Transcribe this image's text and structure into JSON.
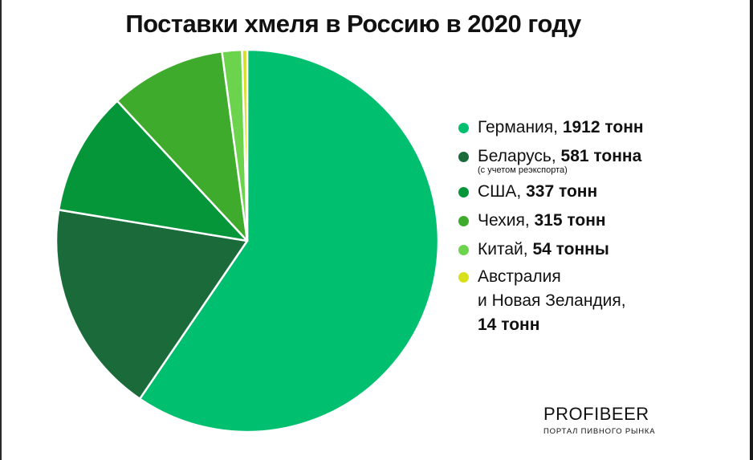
{
  "chart_data": {
    "type": "pie",
    "title": "Поставки хмеля в Россию в 2020 году",
    "slices": [
      {
        "country": "Германия",
        "amount": "1912 тонн",
        "value": 1912,
        "color": "#00bf6f"
      },
      {
        "country": "Беларусь",
        "amount": "581 тонна",
        "note": "(с учетом реэкспорта)",
        "value": 581,
        "color": "#1b6a3a"
      },
      {
        "country": "США",
        "amount": "337 тонн",
        "value": 337,
        "color": "#059639"
      },
      {
        "country": "Чехия",
        "amount": "315 тонн",
        "value": 315,
        "color": "#3fab2c"
      },
      {
        "country": "Китай",
        "amount": "54 тонны",
        "value": 54,
        "color": "#6cd34c"
      },
      {
        "country": "Австралия\nи Новая Зеландия",
        "amount": "14 тонн",
        "value": 14,
        "color": "#d7e01a"
      }
    ]
  },
  "brand": {
    "name": "PROFIBEER",
    "tagline": "ПОРТАЛ ПИВНОГО РЫНКА"
  }
}
